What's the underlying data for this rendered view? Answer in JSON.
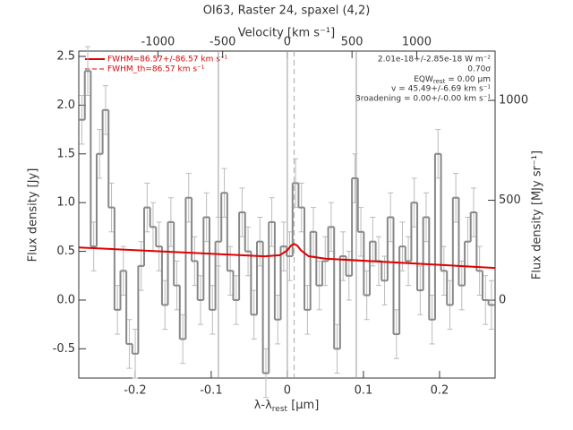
{
  "chart_data": {
    "type": "step",
    "title": "OI63, Raster 24, spaxel (4,2)",
    "x_label": {
      "main": "λ-λ",
      "sub": "rest",
      "unit": " [μm]"
    },
    "x2_label": "Velocity [km s⁻¹]",
    "y_label": "Flux density [Jy]",
    "y2_label": "Flux density [MJy sr⁻¹]",
    "xlim": [
      -0.274,
      0.273
    ],
    "xticks": [
      -0.2,
      -0.1,
      0.0,
      0.1,
      0.2
    ],
    "x2lim": [
      -1612,
      1606
    ],
    "x2ticks": [
      -1000,
      -500,
      0,
      500,
      1000
    ],
    "ylim": [
      -0.8,
      2.555
    ],
    "yticks": [
      {
        "value": -0.5,
        "label": "-0.5"
      },
      {
        "value": 0,
        "label": "0.0"
      },
      0.5,
      {
        "value": 1,
        "label": "1.0"
      },
      1.5,
      {
        "value": 2,
        "label": "2.0"
      },
      2.5
    ],
    "y2lim": [
      -390,
      1247
    ],
    "y2ticks": [
      0,
      500,
      1000
    ],
    "bin_width": 0.0078,
    "series": [
      {
        "name": "Flux",
        "color": "#888888",
        "x": [
          -0.27,
          -0.2622,
          -0.2544,
          -0.2466,
          -0.2388,
          -0.231,
          -0.2232,
          -0.2154,
          -0.2076,
          -0.1998,
          -0.192,
          -0.1842,
          -0.1764,
          -0.1686,
          -0.1608,
          -0.153,
          -0.1452,
          -0.1374,
          -0.1296,
          -0.1218,
          -0.114,
          -0.1062,
          -0.0984,
          -0.0906,
          -0.0828,
          -0.075,
          -0.0672,
          -0.0594,
          -0.0516,
          -0.0438,
          -0.036,
          -0.0282,
          -0.0204,
          -0.0126,
          -0.0048,
          0.003,
          0.0108,
          0.0186,
          0.0264,
          0.0342,
          0.042,
          0.0498,
          0.0576,
          0.0654,
          0.0732,
          0.081,
          0.0888,
          0.0966,
          0.1044,
          0.1122,
          0.12,
          0.1278,
          0.1356,
          0.1434,
          0.1512,
          0.159,
          0.1668,
          0.1746,
          0.1824,
          0.1902,
          0.198,
          0.2058,
          0.2136,
          0.2214,
          0.2292,
          0.237,
          0.2448,
          0.2526,
          0.2604,
          0.2682
        ],
        "values": [
          1.85,
          2.35,
          0.55,
          1.5,
          1.95,
          0.95,
          -0.1,
          0.3,
          -0.45,
          -0.55,
          0.35,
          0.95,
          0.75,
          0.55,
          -0.05,
          0.8,
          0.15,
          -0.4,
          1.05,
          0.4,
          0.0,
          0.85,
          -0.1,
          0.6,
          1.1,
          0.3,
          0.0,
          0.9,
          0.5,
          -0.15,
          0.6,
          -0.75,
          0.8,
          -0.2,
          0.55,
          0.45,
          1.2,
          0.95,
          -0.1,
          0.7,
          0.15,
          0.4,
          0.75,
          -0.5,
          0.45,
          0.25,
          1.25,
          0.7,
          0.05,
          0.6,
          0.4,
          0.2,
          0.85,
          -0.35,
          0.55,
          0.4,
          1.0,
          0.1,
          0.85,
          -0.2,
          1.5,
          0.3,
          -0.05,
          1.05,
          0.15,
          0.6,
          0.9,
          0.3,
          0.0,
          -0.05
        ],
        "error": 0.25,
        "error_color": "#bbbbbb"
      }
    ],
    "fit": {
      "name": "FWHM=86.57+/-86.57 km s⁻¹",
      "color": "#e00000",
      "x": [
        -0.274,
        -0.1,
        -0.03,
        -0.01,
        0.0,
        0.005,
        0.009,
        0.013,
        0.018,
        0.028,
        0.05,
        0.273
      ],
      "values": [
        0.54,
        0.475,
        0.449,
        0.46,
        0.51,
        0.56,
        0.575,
        0.56,
        0.51,
        0.45,
        0.425,
        0.33
      ]
    },
    "fit_th_label": "FWHM_th=86.57 km s⁻¹",
    "vlines": [
      -0.0906,
      0,
      0.0906
    ],
    "dashed_line": 0.009,
    "annotations": [
      "2.01e-18+/-2.85e-18 W m⁻²",
      "0.70σ",
      {
        "main": "EQW",
        "sub": "rest",
        "rest": " = 0.00 μm"
      },
      "v = 45.49+/-6.69 km s⁻¹",
      "Broadening = 0.00+/-0.00 km s⁻¹"
    ]
  }
}
